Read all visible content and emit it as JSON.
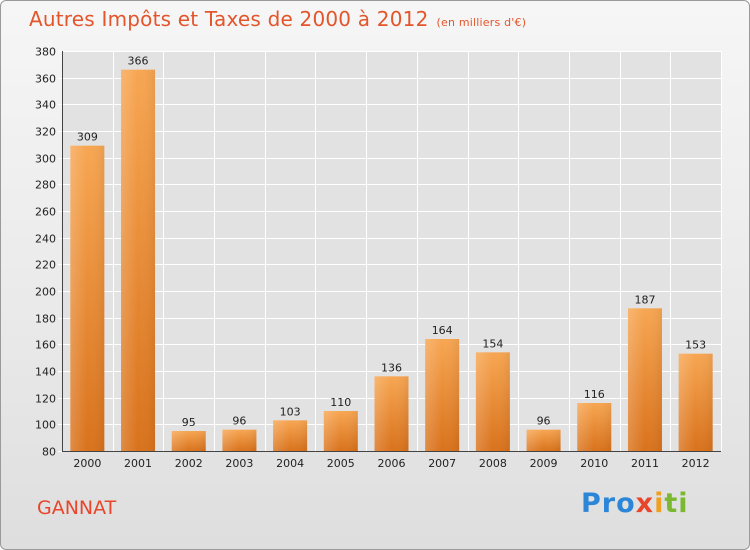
{
  "chart_data": {
    "type": "bar",
    "title": "Autres Impôts et Taxes de 2000 à 2012",
    "subtitle": "(en milliers d'€)",
    "categories": [
      "2000",
      "2001",
      "2002",
      "2003",
      "2004",
      "2005",
      "2006",
      "2007",
      "2008",
      "2009",
      "2010",
      "2011",
      "2012"
    ],
    "values": [
      309,
      366,
      95,
      96,
      103,
      110,
      136,
      164,
      154,
      96,
      116,
      187,
      153
    ],
    "ylim": [
      80,
      380
    ],
    "yticks": [
      80,
      100,
      120,
      140,
      160,
      180,
      200,
      220,
      240,
      260,
      280,
      300,
      320,
      340,
      360,
      380
    ],
    "grid": true,
    "bar_color_top": "#f7a652",
    "bar_color_bottom": "#d9721c"
  },
  "place_name": "GANNAT",
  "logo": {
    "p1": "Pro",
    "p2": "x",
    "p3": "i",
    "p4": "ti"
  }
}
